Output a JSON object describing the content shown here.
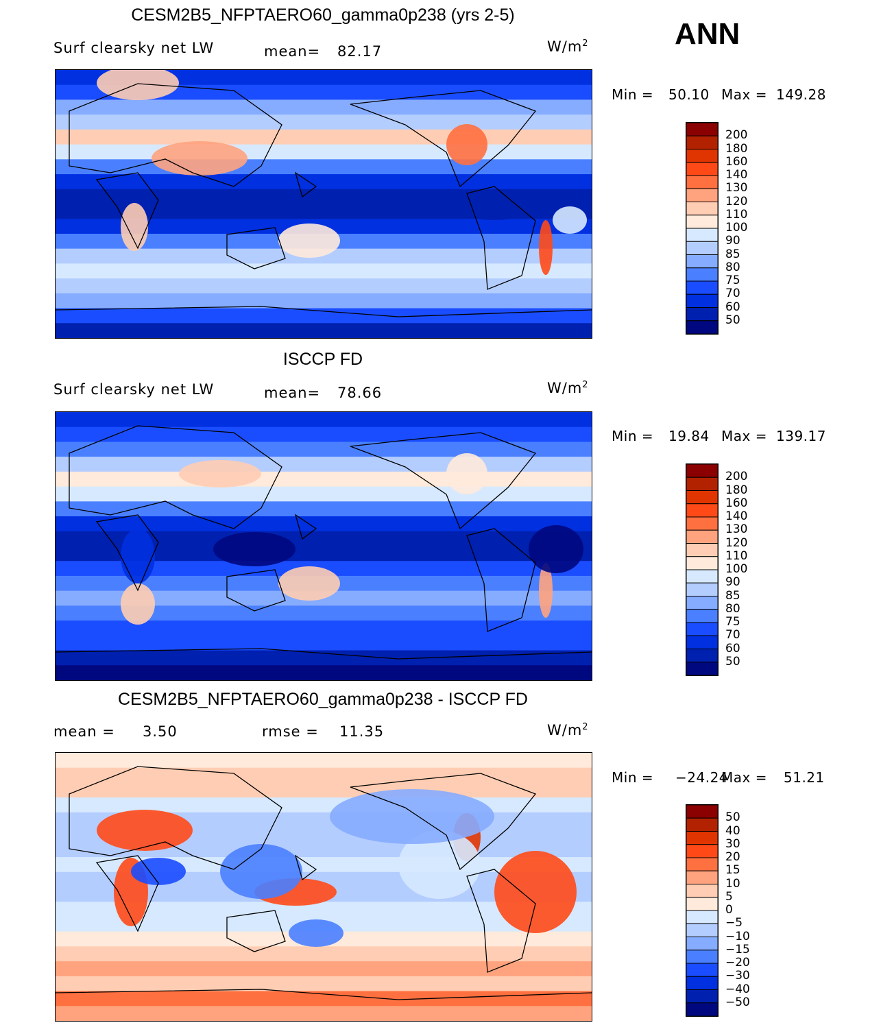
{
  "season": "ANN",
  "colors": [
    "#8b0000",
    "#b22200",
    "#e03500",
    "#ff4a18",
    "#ff7040",
    "#ffa37e",
    "#ffcdb3",
    "#ffeadb",
    "#d6e9ff",
    "#b4cdff",
    "#86acff",
    "#4a80ff",
    "#1a4dff",
    "#0030e0",
    "#0020b0",
    "#00087f"
  ],
  "chart_data": [
    {
      "type": "heatmap",
      "title": "CESM2B5_NFPTAERO60_gamma0p238 (yrs 2-5)",
      "variable": "Surf clearsky net LW",
      "stat_label": "mean=",
      "stat_value": "82.17",
      "units": "W/m",
      "units_sup": "2",
      "min_label": "Min =",
      "min": "50.10",
      "max_label": "Max =",
      "max": "149.28",
      "levels": [
        "200",
        "180",
        "160",
        "140",
        "130",
        "120",
        "110",
        "100",
        "90",
        "85",
        "80",
        "75",
        "70",
        "60",
        "50"
      ],
      "kind": "abs"
    },
    {
      "type": "heatmap",
      "title": "ISCCP FD",
      "variable": "Surf clearsky net LW",
      "stat_label": "mean=",
      "stat_value": "78.66",
      "units": "W/m",
      "units_sup": "2",
      "min_label": "Min =",
      "min": "19.84",
      "max_label": "Max =",
      "max": "139.17",
      "levels": [
        "200",
        "180",
        "160",
        "140",
        "130",
        "120",
        "110",
        "100",
        "90",
        "85",
        "80",
        "75",
        "70",
        "60",
        "50"
      ],
      "kind": "obs"
    },
    {
      "type": "heatmap",
      "title": "CESM2B5_NFPTAERO60_gamma0p238 - ISCCP FD",
      "variable": "mean =",
      "stat_label": "rmse =",
      "stat_value": "11.35",
      "mean_value": "3.50",
      "units": "W/m",
      "units_sup": "2",
      "min_label": "Min =",
      "min": "−24.24",
      "max_label": "Max =",
      "max": "51.21",
      "levels": [
        "50",
        "40",
        "30",
        "20",
        "15",
        "10",
        "5",
        "0",
        "−5",
        "−10",
        "−15",
        "−20",
        "−30",
        "−40",
        "−50"
      ],
      "kind": "diff"
    }
  ]
}
